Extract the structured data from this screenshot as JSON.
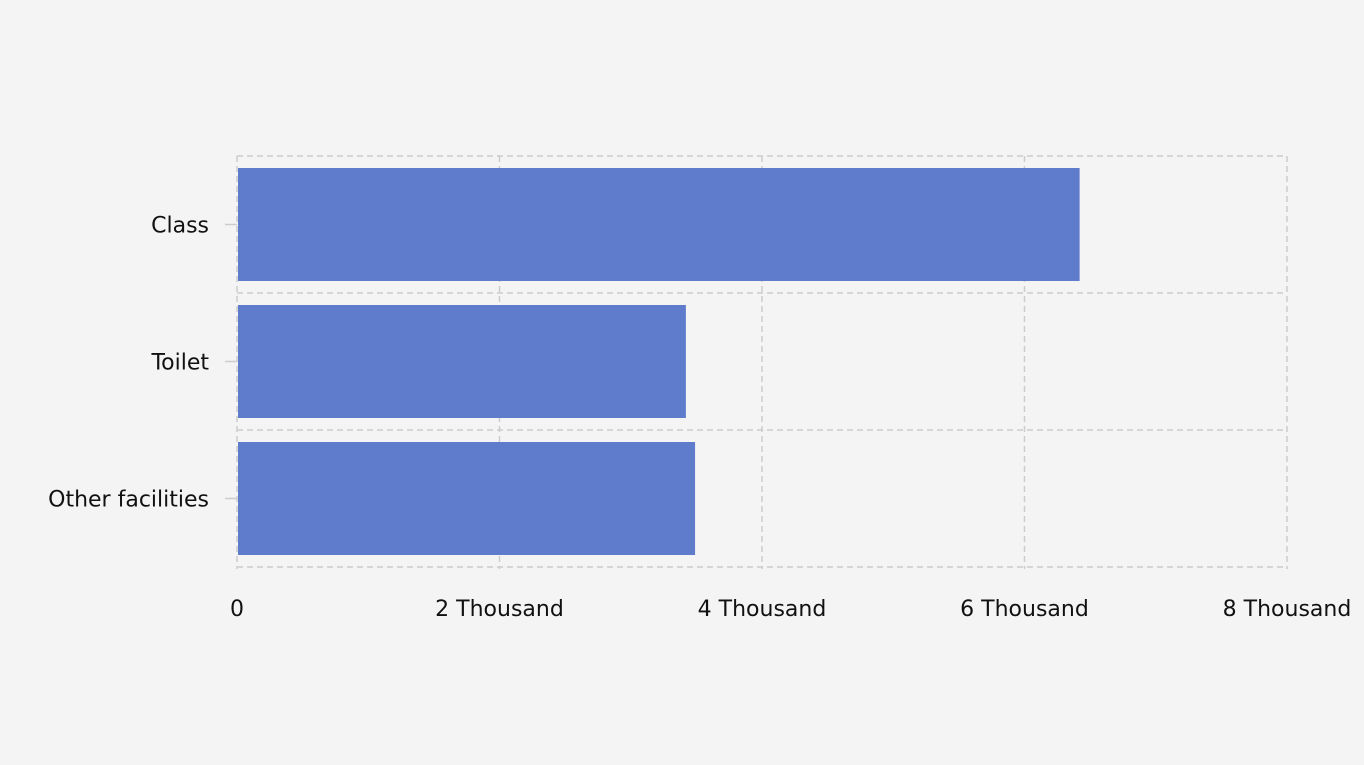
{
  "chart_data": {
    "type": "bar",
    "orientation": "horizontal",
    "categories": [
      "Class",
      "Toilet",
      "Other facilities"
    ],
    "values": [
      6420,
      3420,
      3490
    ],
    "xlim": [
      0,
      8000
    ],
    "x_ticks": [
      {
        "value": 0,
        "label": "0"
      },
      {
        "value": 2000,
        "label": "2 Thousand"
      },
      {
        "value": 4000,
        "label": "4 Thousand"
      },
      {
        "value": 6000,
        "label": "6 Thousand"
      },
      {
        "value": 8000,
        "label": "8 Thousand"
      }
    ],
    "grid": true,
    "legend": "none",
    "bar_color": "#5f7bcb",
    "grid_color": "#cccccc",
    "background_color": "#f4f4f4"
  }
}
